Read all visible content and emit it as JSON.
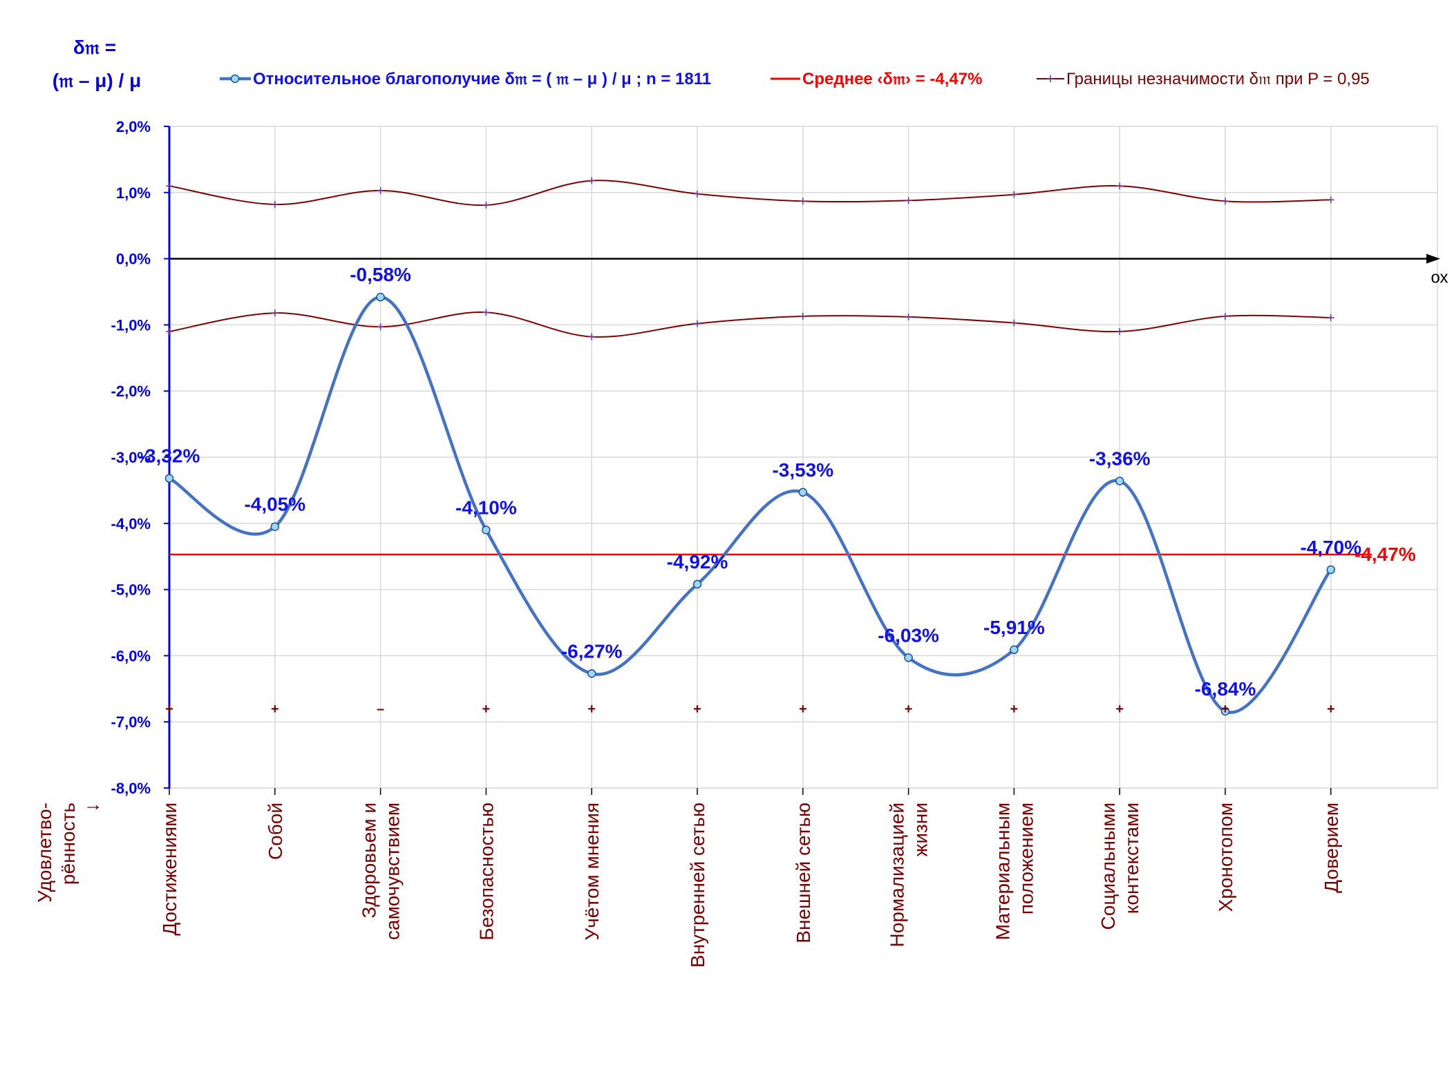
{
  "chart_data": {
    "type": "line",
    "title": "",
    "ylabel_lines": [
      "δ𝔪 =",
      "(𝔪 – μ) / μ"
    ],
    "xlabel_lines": [
      "Удовлетво-",
      "рённость",
      "↓"
    ],
    "x_axis_end_label": "ох",
    "ylim": [
      -8.0,
      2.0
    ],
    "y_ticks": [
      "2,0%",
      "1,0%",
      "0,0%",
      "-1,0%",
      "-2,0%",
      "-3,0%",
      "-4,0%",
      "-5,0%",
      "-6,0%",
      "-7,0%",
      "-8,0%"
    ],
    "y_tick_values": [
      2,
      1,
      0,
      -1,
      -2,
      -3,
      -4,
      -5,
      -6,
      -7,
      -8
    ],
    "grid": true,
    "legend_position": "top",
    "categories": [
      [
        "Достижениями"
      ],
      [
        "Собой"
      ],
      [
        "Здоровьем и",
        "самочувствием"
      ],
      [
        "Безопасностью"
      ],
      [
        "Учётом мнения"
      ],
      [
        "Внутренней сетью"
      ],
      [
        "Внешней сетью"
      ],
      [
        "Нормализацией",
        "жизни"
      ],
      [
        "Материальным",
        "положением"
      ],
      [
        "Социальными",
        "контекстами"
      ],
      [
        "Хронотопом"
      ],
      [
        "Доверием"
      ]
    ],
    "series": [
      {
        "name": "Относительное благополучие δ𝔪 = ( 𝔪 – μ ) / μ ; n = 1811",
        "color": "#4472c4",
        "values": [
          -3.32,
          -4.05,
          -0.58,
          -4.1,
          -6.27,
          -4.92,
          -3.53,
          -6.03,
          -5.91,
          -3.36,
          -6.84,
          -4.7
        ],
        "labels": [
          "-3,32%",
          "-4,05%",
          "-0,58%",
          "-4,10%",
          "-6,27%",
          "-4,92%",
          "-3,53%",
          "-6,03%",
          "-5,91%",
          "-3,36%",
          "-6,84%",
          "-4,70%"
        ]
      },
      {
        "name": "Среднее ‹δ𝔪› = -4,47%",
        "color": "#ff0000",
        "value": -4.47,
        "label": "-4,47%"
      },
      {
        "name": "Границы незначимости δ𝔪 при P = 0,95",
        "color": "#800000",
        "upper": [
          1.1,
          0.82,
          1.03,
          0.81,
          1.18,
          0.98,
          0.87,
          0.88,
          0.97,
          1.1,
          0.87,
          0.89
        ],
        "lower": [
          -1.1,
          -0.82,
          -1.03,
          -0.81,
          -1.18,
          -0.98,
          -0.87,
          -0.88,
          -0.97,
          -1.1,
          -0.87,
          -0.89
        ]
      }
    ],
    "significance_marks": [
      "+",
      "+",
      "–",
      "+",
      "+",
      "+",
      "+",
      "+",
      "+",
      "+",
      "+",
      "+"
    ],
    "significance_row_value": -6.8
  }
}
